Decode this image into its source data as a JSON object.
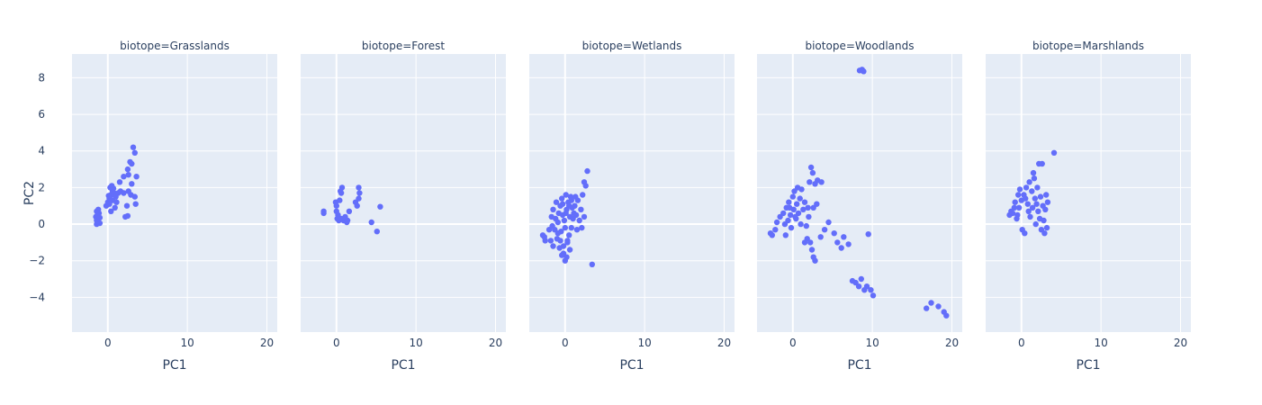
{
  "chart_data": {
    "type": "scatter",
    "facet_prefix": "biotope=",
    "xlabel": "PC1",
    "ylabel": "PC2",
    "xlim": [
      -4.5,
      21.3
    ],
    "ylim": [
      -5.9,
      9.3
    ],
    "x_ticks": [
      0,
      10,
      20
    ],
    "y_ticks": [
      -4,
      -2,
      0,
      2,
      4,
      6,
      8
    ],
    "grid": true,
    "legend": "none",
    "marker_color": "#636efa",
    "panels": [
      {
        "title": "biotope=Grasslands",
        "points": [
          [
            -1.3,
            0.1
          ],
          [
            -1.4,
            0.2
          ],
          [
            -1.2,
            0.3
          ],
          [
            -1.5,
            0.4
          ],
          [
            -1.3,
            0.5
          ],
          [
            -1.1,
            0.6
          ],
          [
            -1.4,
            0.7
          ],
          [
            -1.2,
            0.8
          ],
          [
            -1.0,
            0.05
          ],
          [
            -1.4,
            0.0
          ],
          [
            -1.2,
            0.45
          ],
          [
            -1.0,
            0.35
          ],
          [
            -0.2,
            1.0
          ],
          [
            0.0,
            1.2
          ],
          [
            0.2,
            1.4
          ],
          [
            0.4,
            1.6
          ],
          [
            0.6,
            1.8
          ],
          [
            0.3,
            2.0
          ],
          [
            0.5,
            2.1
          ],
          [
            0.8,
            1.7
          ],
          [
            1.0,
            1.5
          ],
          [
            0.2,
            1.1
          ],
          [
            0.6,
            1.3
          ],
          [
            0.9,
            0.9
          ],
          [
            0.4,
            0.7
          ],
          [
            0.1,
            1.55
          ],
          [
            0.7,
            1.95
          ],
          [
            1.1,
            1.2
          ],
          [
            1.5,
            2.3
          ],
          [
            2.0,
            2.6
          ],
          [
            2.5,
            3.0
          ],
          [
            3.0,
            3.3
          ],
          [
            2.8,
            3.4
          ],
          [
            3.4,
            3.9
          ],
          [
            3.2,
            4.2
          ],
          [
            3.6,
            2.6
          ],
          [
            3.0,
            2.2
          ],
          [
            2.6,
            1.8
          ],
          [
            2.9,
            1.6
          ],
          [
            3.4,
            1.5
          ],
          [
            3.5,
            1.1
          ],
          [
            2.4,
            1.0
          ],
          [
            2.2,
            0.4
          ],
          [
            2.5,
            0.45
          ],
          [
            1.6,
            1.8
          ],
          [
            2.0,
            1.7
          ],
          [
            2.6,
            2.7
          ],
          [
            1.3,
            1.7
          ]
        ]
      },
      {
        "title": "biotope=Forest",
        "points": [
          [
            -1.6,
            0.7
          ],
          [
            -1.6,
            0.6
          ],
          [
            -0.1,
            1.2
          ],
          [
            0.0,
            1.0
          ],
          [
            0.4,
            1.3
          ],
          [
            0.6,
            1.7
          ],
          [
            0.7,
            2.0
          ],
          [
            0.5,
            1.8
          ],
          [
            0.0,
            0.7
          ],
          [
            0.2,
            0.5
          ],
          [
            0.3,
            0.2
          ],
          [
            0.6,
            0.3
          ],
          [
            0.9,
            0.2
          ],
          [
            1.1,
            0.4
          ],
          [
            1.3,
            0.1
          ],
          [
            1.6,
            0.7
          ],
          [
            2.6,
            1.0
          ],
          [
            2.8,
            1.4
          ],
          [
            2.9,
            1.7
          ],
          [
            2.8,
            2.0
          ],
          [
            2.4,
            1.2
          ],
          [
            4.4,
            0.1
          ],
          [
            5.1,
            -0.4
          ],
          [
            5.5,
            0.95
          ],
          [
            0.1,
            0.3
          ],
          [
            1.4,
            0.2
          ]
        ]
      },
      {
        "title": "biotope=Wetlands",
        "points": [
          [
            -2.6,
            -0.7
          ],
          [
            -2.8,
            -0.6
          ],
          [
            -2.5,
            -0.9
          ],
          [
            -2.0,
            -0.3
          ],
          [
            -1.8,
            -0.9
          ],
          [
            -1.5,
            -1.2
          ],
          [
            -1.7,
            0.4
          ],
          [
            -1.3,
            -0.3
          ],
          [
            -1.5,
            0.8
          ],
          [
            -1.1,
            1.2
          ],
          [
            -1.0,
            -0.8
          ],
          [
            -0.9,
            0.1
          ],
          [
            -0.7,
            -1.3
          ],
          [
            -0.6,
            1.0
          ],
          [
            -0.5,
            -0.4
          ],
          [
            -0.4,
            1.4
          ],
          [
            -0.3,
            0.5
          ],
          [
            -0.2,
            -1.6
          ],
          [
            -0.1,
            0.2
          ],
          [
            0.0,
            -0.2
          ],
          [
            0.1,
            1.6
          ],
          [
            0.2,
            0.8
          ],
          [
            0.3,
            -1.0
          ],
          [
            0.4,
            1.2
          ],
          [
            0.5,
            -0.6
          ],
          [
            0.6,
            0.4
          ],
          [
            0.7,
            1.5
          ],
          [
            0.8,
            -0.2
          ],
          [
            0.9,
            0.9
          ],
          [
            1.0,
            0.3
          ],
          [
            1.2,
            1.0
          ],
          [
            1.4,
            0.5
          ],
          [
            1.6,
            1.3
          ],
          [
            1.8,
            0.2
          ],
          [
            2.0,
            0.8
          ],
          [
            2.2,
            1.6
          ],
          [
            2.4,
            2.3
          ],
          [
            2.6,
            2.1
          ],
          [
            2.8,
            2.9
          ],
          [
            2.4,
            0.4
          ],
          [
            2.1,
            -0.2
          ],
          [
            3.4,
            -2.2
          ],
          [
            1.5,
            -0.3
          ],
          [
            0.0,
            -2.0
          ],
          [
            0.2,
            -1.8
          ],
          [
            -0.4,
            -1.7
          ],
          [
            0.3,
            -0.9
          ],
          [
            -0.8,
            0.6
          ],
          [
            -1.2,
            0.3
          ],
          [
            0.5,
            1.0
          ],
          [
            -0.3,
            1.1
          ],
          [
            0.1,
            0.6
          ],
          [
            -0.6,
            -0.9
          ],
          [
            0.8,
            1.3
          ],
          [
            -1.6,
            -0.1
          ],
          [
            1.1,
            0.6
          ],
          [
            0.6,
            -1.4
          ],
          [
            -0.2,
            -1.2
          ],
          [
            1.3,
            1.5
          ],
          [
            -0.9,
            -0.5
          ]
        ]
      },
      {
        "title": "biotope=Woodlands",
        "points": [
          [
            -2.8,
            -0.5
          ],
          [
            -2.6,
            -0.6
          ],
          [
            -2.2,
            -0.3
          ],
          [
            -2.0,
            0.1
          ],
          [
            -1.6,
            0.4
          ],
          [
            -1.2,
            0.6
          ],
          [
            -1.0,
            0.0
          ],
          [
            -0.8,
            0.9
          ],
          [
            -0.6,
            0.2
          ],
          [
            -0.5,
            1.2
          ],
          [
            -0.3,
            0.5
          ],
          [
            -0.2,
            -0.2
          ],
          [
            0.0,
            1.5
          ],
          [
            0.1,
            0.8
          ],
          [
            0.2,
            1.8
          ],
          [
            0.4,
            0.3
          ],
          [
            0.5,
            1.1
          ],
          [
            0.7,
            0.6
          ],
          [
            0.9,
            1.4
          ],
          [
            1.0,
            0.0
          ],
          [
            1.3,
            0.8
          ],
          [
            1.5,
            1.2
          ],
          [
            1.7,
            -0.1
          ],
          [
            2.0,
            0.4
          ],
          [
            2.1,
            2.3
          ],
          [
            2.3,
            3.1
          ],
          [
            2.5,
            2.8
          ],
          [
            2.8,
            2.2
          ],
          [
            3.1,
            2.4
          ],
          [
            3.6,
            2.3
          ],
          [
            2.6,
            0.9
          ],
          [
            3.0,
            1.1
          ],
          [
            1.8,
            -0.8
          ],
          [
            1.5,
            -1.0
          ],
          [
            2.2,
            -1.0
          ],
          [
            2.4,
            -1.4
          ],
          [
            2.6,
            -1.8
          ],
          [
            2.8,
            -2.0
          ],
          [
            3.5,
            -0.7
          ],
          [
            4.0,
            -0.3
          ],
          [
            4.5,
            0.1
          ],
          [
            5.2,
            -0.5
          ],
          [
            5.6,
            -1.0
          ],
          [
            6.1,
            -1.3
          ],
          [
            6.4,
            -0.7
          ],
          [
            7.0,
            -1.1
          ],
          [
            9.5,
            -0.55
          ],
          [
            7.5,
            -3.1
          ],
          [
            7.9,
            -3.2
          ],
          [
            8.3,
            -3.4
          ],
          [
            8.6,
            -3.0
          ],
          [
            9.0,
            -3.6
          ],
          [
            9.3,
            -3.4
          ],
          [
            9.8,
            -3.6
          ],
          [
            10.1,
            -3.9
          ],
          [
            8.4,
            8.4
          ],
          [
            8.7,
            8.45
          ],
          [
            8.9,
            8.35
          ],
          [
            16.8,
            -4.6
          ],
          [
            17.4,
            -4.3
          ],
          [
            18.3,
            -4.5
          ],
          [
            19.0,
            -4.8
          ],
          [
            19.3,
            -5.0
          ],
          [
            -0.9,
            -0.6
          ],
          [
            0.3,
            0.4
          ],
          [
            1.1,
            1.9
          ],
          [
            1.9,
            0.9
          ],
          [
            0.6,
            2.0
          ],
          [
            -0.4,
            0.9
          ]
        ]
      },
      {
        "title": "biotope=Marshlands",
        "points": [
          [
            -1.5,
            0.5
          ],
          [
            -1.3,
            0.7
          ],
          [
            -1.1,
            0.6
          ],
          [
            -0.9,
            0.9
          ],
          [
            -0.8,
            1.2
          ],
          [
            -0.6,
            0.3
          ],
          [
            -0.4,
            1.6
          ],
          [
            -0.3,
            0.9
          ],
          [
            -0.2,
            1.9
          ],
          [
            0.0,
            1.3
          ],
          [
            0.1,
            -0.3
          ],
          [
            0.3,
            1.6
          ],
          [
            0.4,
            -0.5
          ],
          [
            0.6,
            2.0
          ],
          [
            0.8,
            1.1
          ],
          [
            1.0,
            2.3
          ],
          [
            1.1,
            0.4
          ],
          [
            1.3,
            1.8
          ],
          [
            1.4,
            0.9
          ],
          [
            1.6,
            2.5
          ],
          [
            1.7,
            1.4
          ],
          [
            1.8,
            0.0
          ],
          [
            2.0,
            2.0
          ],
          [
            2.1,
            0.7
          ],
          [
            2.2,
            3.3
          ],
          [
            2.4,
            1.5
          ],
          [
            2.5,
            -0.3
          ],
          [
            2.6,
            3.3
          ],
          [
            2.7,
            1.0
          ],
          [
            2.8,
            0.2
          ],
          [
            2.9,
            -0.5
          ],
          [
            3.0,
            0.8
          ],
          [
            3.1,
            1.6
          ],
          [
            3.2,
            -0.2
          ],
          [
            3.3,
            1.2
          ],
          [
            4.1,
            3.9
          ],
          [
            0.5,
            1.4
          ],
          [
            1.5,
            2.8
          ],
          [
            2.3,
            0.3
          ],
          [
            0.9,
            0.7
          ],
          [
            -0.5,
            0.5
          ],
          [
            1.9,
            1.1
          ]
        ]
      }
    ]
  }
}
